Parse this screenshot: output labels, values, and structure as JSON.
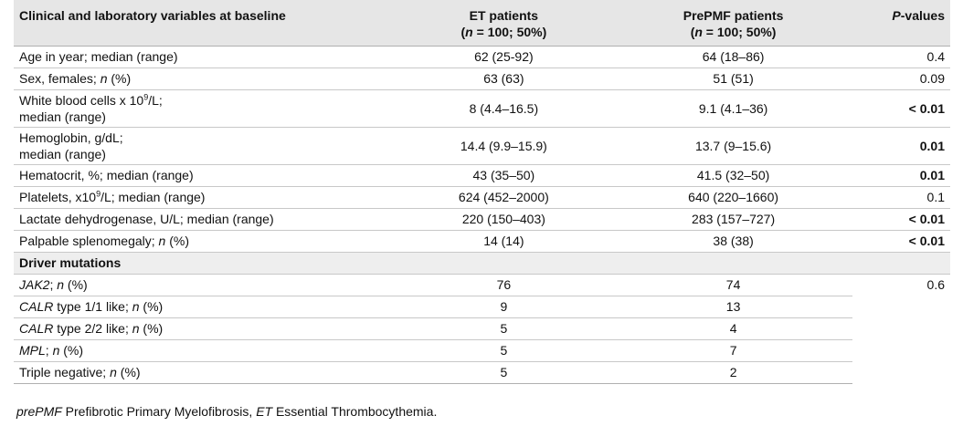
{
  "table": {
    "header": [
      [
        {
          "text": "Clinical and laboratory variables at baseline"
        }
      ],
      [
        {
          "text": "ET patients",
          "break": true
        },
        {
          "text": "("
        },
        {
          "text": "n",
          "italic": true
        },
        {
          "text": " = 100; 50%)"
        }
      ],
      [
        {
          "text": "PrePMF patients",
          "break": true
        },
        {
          "text": "("
        },
        {
          "text": "n",
          "italic": true
        },
        {
          "text": " = 100; 50%)"
        }
      ],
      [
        {
          "text": "P",
          "italic": true
        },
        {
          "text": "-values"
        }
      ]
    ],
    "rows": [
      [
        [
          {
            "text": "Age in year; median (range)"
          }
        ],
        [
          {
            "text": "62 (25-92)"
          }
        ],
        [
          {
            "text": "64 (18–86)"
          }
        ],
        [
          {
            "text": "0.4"
          }
        ]
      ],
      [
        [
          {
            "text": "Sex, females; "
          },
          {
            "text": "n",
            "italic": true
          },
          {
            "text": " (%)"
          }
        ],
        [
          {
            "text": "63 (63)"
          }
        ],
        [
          {
            "text": "51 (51)"
          }
        ],
        [
          {
            "text": "0.09"
          }
        ]
      ],
      [
        [
          {
            "text": "White blood cells x 10"
          },
          {
            "text": "9",
            "sup": true
          },
          {
            "text": "/L;",
            "break": true
          },
          {
            "text": "median (range)"
          }
        ],
        [
          {
            "text": "8 (4.4–16.5)"
          }
        ],
        [
          {
            "text": "9.1 (4.1–36)"
          }
        ],
        [
          {
            "text": "< 0.01",
            "bold": true
          }
        ]
      ],
      [
        [
          {
            "text": "Hemoglobin, g/dL;",
            "break": true
          },
          {
            "text": "median (range)"
          }
        ],
        [
          {
            "text": "14.4 (9.9–15.9)"
          }
        ],
        [
          {
            "text": "13.7 (9–15.6)"
          }
        ],
        [
          {
            "text": "0.01",
            "bold": true
          }
        ]
      ],
      [
        [
          {
            "text": "Hematocrit, %; median (range)"
          }
        ],
        [
          {
            "text": "43 (35–50)"
          }
        ],
        [
          {
            "text": "41.5 (32–50)"
          }
        ],
        [
          {
            "text": "0.01",
            "bold": true
          }
        ]
      ],
      [
        [
          {
            "text": "Platelets, x10"
          },
          {
            "text": "9",
            "sup": true
          },
          {
            "text": "/L; median (range)"
          }
        ],
        [
          {
            "text": "624 (452–2000)"
          }
        ],
        [
          {
            "text": "640 (220–1660)"
          }
        ],
        [
          {
            "text": "0.1"
          }
        ]
      ],
      [
        [
          {
            "text": "Lactate dehydrogenase, U/L; median (range)"
          }
        ],
        [
          {
            "text": "220 (150–403)"
          }
        ],
        [
          {
            "text": "283 (157–727)"
          }
        ],
        [
          {
            "text": "< 0.01",
            "bold": true
          }
        ]
      ],
      [
        [
          {
            "text": "Palpable splenomegaly; "
          },
          {
            "text": "n",
            "italic": true
          },
          {
            "text": " (%)"
          }
        ],
        [
          {
            "text": "14 (14)"
          }
        ],
        [
          {
            "text": "38 (38)"
          }
        ],
        [
          {
            "text": "< 0.01",
            "bold": true
          }
        ]
      ],
      [
        [
          {
            "text": "Driver mutations",
            "bold": true
          }
        ]
      ],
      [
        [
          {
            "text": "JAK2",
            "italic": true
          },
          {
            "text": "; "
          },
          {
            "text": "n",
            "italic": true
          },
          {
            "text": " (%)"
          }
        ],
        [
          {
            "text": "76"
          }
        ],
        [
          {
            "text": "74"
          }
        ],
        {
          "runs": [
            {
              "text": "0.6"
            }
          ],
          "rowspan": 5
        }
      ],
      [
        [
          {
            "text": "CALR",
            "italic": true
          },
          {
            "text": " type 1/1 like; "
          },
          {
            "text": "n",
            "italic": true
          },
          {
            "text": " (%)"
          }
        ],
        [
          {
            "text": "9"
          }
        ],
        [
          {
            "text": "13"
          }
        ]
      ],
      [
        [
          {
            "text": "CALR",
            "italic": true
          },
          {
            "text": " type 2/2 like; "
          },
          {
            "text": "n",
            "italic": true
          },
          {
            "text": " (%)"
          }
        ],
        [
          {
            "text": "5"
          }
        ],
        [
          {
            "text": "4"
          }
        ]
      ],
      [
        [
          {
            "text": "MPL",
            "italic": true
          },
          {
            "text": "; "
          },
          {
            "text": "n",
            "italic": true
          },
          {
            "text": " (%)"
          }
        ],
        [
          {
            "text": "5"
          }
        ],
        [
          {
            "text": "7"
          }
        ]
      ],
      [
        [
          {
            "text": "Triple negative; "
          },
          {
            "text": "n",
            "italic": true
          },
          {
            "text": " (%)"
          }
        ],
        [
          {
            "text": "5"
          }
        ],
        [
          {
            "text": "2"
          }
        ]
      ]
    ]
  },
  "footnote": [
    {
      "text": "prePMF",
      "italic": true
    },
    {
      "text": " Prefibrotic Primary Myelofibrosis, "
    },
    {
      "text": "ET",
      "italic": true
    },
    {
      "text": " Essential Thrombocythemia."
    }
  ]
}
